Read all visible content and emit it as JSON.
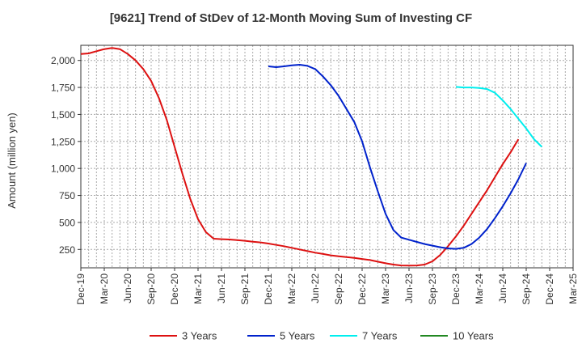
{
  "chart_data": {
    "type": "line",
    "title": "[9621]  Trend of StDev of 12-Month Moving Sum of Investing CF",
    "xlabel": "",
    "ylabel": "Amount (million yen)",
    "x_ticks": [
      "Dec-19",
      "Mar-20",
      "Jun-20",
      "Sep-20",
      "Dec-20",
      "Mar-21",
      "Jun-21",
      "Sep-21",
      "Dec-21",
      "Mar-22",
      "Jun-22",
      "Sep-22",
      "Dec-22",
      "Mar-23",
      "Jun-23",
      "Sep-23",
      "Dec-23",
      "Mar-24",
      "Jun-24",
      "Sep-24",
      "Dec-24",
      "Mar-25"
    ],
    "y_ticks": [
      250,
      500,
      750,
      1000,
      1250,
      1500,
      1750,
      2000
    ],
    "y_tick_labels": [
      "250",
      "500",
      "750",
      "1,000",
      "1,250",
      "1,500",
      "1,750",
      "2,000"
    ],
    "ylim": [
      80,
      2140
    ],
    "grid": true,
    "legend_position": "bottom",
    "series": [
      {
        "name": "3 Years",
        "color": "#dd1111",
        "start_index": 0,
        "values": [
          2060,
          2065,
          2085,
          2105,
          2115,
          2105,
          2060,
          2000,
          1920,
          1810,
          1650,
          1450,
          1200,
          950,
          720,
          530,
          410,
          350,
          345,
          342,
          337,
          330,
          322,
          315,
          305,
          292,
          280,
          265,
          250,
          235,
          220,
          208,
          195,
          187,
          180,
          172,
          162,
          152,
          137,
          122,
          110,
          102,
          100,
          102,
          110,
          140,
          200,
          280,
          370,
          470,
          580,
          690,
          800,
          920,
          1040,
          1150,
          1270
        ]
      },
      {
        "name": "5 Years",
        "color": "#0022cc",
        "start_index": 24,
        "values": [
          1945,
          1938,
          1945,
          1955,
          1960,
          1950,
          1920,
          1850,
          1770,
          1670,
          1550,
          1430,
          1250,
          1010,
          790,
          580,
          430,
          360,
          340,
          320,
          300,
          285,
          270,
          260,
          255,
          265,
          300,
          360,
          440,
          540,
          650,
          770,
          900,
          1050
        ]
      },
      {
        "name": "7 Years",
        "color": "#00eeee",
        "start_index": 48,
        "values": [
          1755,
          1750,
          1750,
          1745,
          1735,
          1700,
          1630,
          1550,
          1460,
          1370,
          1270,
          1200
        ]
      },
      {
        "name": "10 Years",
        "color": "#228822",
        "start_index": 0,
        "values": []
      }
    ]
  }
}
